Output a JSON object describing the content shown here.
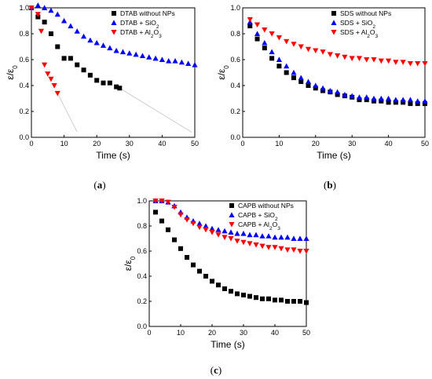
{
  "chart_data": [
    {
      "type": "scatter",
      "panel_caption": "(a)",
      "xlabel": "Time (s)",
      "ylabel": "ε/ε0",
      "xlim": [
        0,
        50
      ],
      "ylim": [
        0,
        1.0
      ],
      "xticks": [
        "0",
        "10",
        "20",
        "30",
        "40",
        "50"
      ],
      "yticks": [
        "0.0",
        "0.2",
        "0.4",
        "0.6",
        "0.8",
        "1.0"
      ],
      "legend_position": "top-right",
      "colors": {
        "black": "#000000",
        "blue": "#0000ff",
        "red": "#ff0000",
        "fit": "#aaaaaa"
      },
      "series": [
        {
          "name": "DTAB without NPs",
          "marker": "square",
          "color": "#000000",
          "x": [
            2,
            4,
            6,
            8,
            10,
            12,
            14,
            16,
            18,
            20,
            22,
            24,
            26,
            27
          ],
          "y": [
            0.93,
            0.89,
            0.8,
            0.7,
            0.61,
            0.61,
            0.56,
            0.52,
            0.48,
            0.44,
            0.42,
            0.42,
            0.39,
            0.38
          ]
        },
        {
          "name": "DTAB + SiO2",
          "marker": "triangle-up",
          "color": "#0000ff",
          "x": [
            0,
            2,
            4,
            6,
            8,
            10,
            12,
            14,
            16,
            18,
            20,
            22,
            24,
            26,
            28,
            30,
            32,
            34,
            36,
            38,
            40,
            42,
            44,
            46,
            48,
            50
          ],
          "y": [
            1.0,
            1.02,
            1.0,
            0.98,
            0.95,
            0.9,
            0.86,
            0.82,
            0.78,
            0.75,
            0.73,
            0.71,
            0.69,
            0.67,
            0.66,
            0.65,
            0.64,
            0.63,
            0.62,
            0.61,
            0.6,
            0.59,
            0.59,
            0.58,
            0.57,
            0.56
          ]
        },
        {
          "name": "DTAB + Al2O3",
          "marker": "triangle-down",
          "color": "#ff0000",
          "x": [
            0,
            2,
            3,
            4,
            5,
            6,
            7,
            8
          ],
          "y": [
            1.0,
            0.95,
            0.82,
            0.56,
            0.49,
            0.45,
            0.4,
            0.34
          ]
        }
      ],
      "fit_lines": [
        {
          "x": [
            8,
            14
          ],
          "y": [
            0.34,
            0.04
          ]
        },
        {
          "x": [
            27,
            49
          ],
          "y": [
            0.38,
            0.04
          ]
        }
      ]
    },
    {
      "type": "scatter",
      "panel_caption": "(b)",
      "xlabel": "Time (s)",
      "ylabel": "ε/ε0",
      "xlim": [
        0,
        50
      ],
      "ylim": [
        0,
        1.0
      ],
      "xticks": [
        "0",
        "10",
        "20",
        "30",
        "40",
        "50"
      ],
      "yticks": [
        "0.0",
        "0.2",
        "0.4",
        "0.6",
        "0.8",
        "1.0"
      ],
      "legend_position": "top-right",
      "series": [
        {
          "name": "SDS without NPs",
          "marker": "square",
          "color": "#000000",
          "x": [
            2,
            4,
            6,
            8,
            10,
            12,
            14,
            16,
            18,
            20,
            22,
            24,
            26,
            28,
            30,
            32,
            34,
            36,
            38,
            40,
            42,
            44,
            46,
            48,
            50
          ],
          "y": [
            0.86,
            0.76,
            0.69,
            0.61,
            0.55,
            0.5,
            0.46,
            0.43,
            0.4,
            0.38,
            0.36,
            0.35,
            0.33,
            0.32,
            0.31,
            0.29,
            0.29,
            0.28,
            0.28,
            0.27,
            0.27,
            0.27,
            0.26,
            0.26,
            0.26
          ]
        },
        {
          "name": "SDS + SiO2",
          "marker": "triangle-up",
          "color": "#0000ff",
          "x": [
            2,
            4,
            6,
            8,
            10,
            12,
            14,
            16,
            18,
            20,
            22,
            24,
            26,
            28,
            30,
            32,
            34,
            36,
            38,
            40,
            42,
            44,
            46,
            48,
            50
          ],
          "y": [
            0.89,
            0.8,
            0.73,
            0.66,
            0.6,
            0.55,
            0.5,
            0.46,
            0.43,
            0.4,
            0.38,
            0.36,
            0.35,
            0.33,
            0.32,
            0.31,
            0.31,
            0.3,
            0.3,
            0.3,
            0.29,
            0.29,
            0.29,
            0.28,
            0.28
          ]
        },
        {
          "name": "SDS + Al2O3",
          "marker": "triangle-down",
          "color": "#ff0000",
          "x": [
            2,
            4,
            6,
            8,
            10,
            12,
            14,
            16,
            18,
            20,
            22,
            24,
            26,
            28,
            30,
            32,
            34,
            36,
            38,
            40,
            42,
            44,
            46,
            48,
            50
          ],
          "y": [
            0.91,
            0.87,
            0.83,
            0.8,
            0.77,
            0.74,
            0.72,
            0.7,
            0.68,
            0.67,
            0.66,
            0.64,
            0.63,
            0.62,
            0.61,
            0.61,
            0.6,
            0.6,
            0.59,
            0.59,
            0.58,
            0.58,
            0.57,
            0.57,
            0.57
          ]
        }
      ]
    },
    {
      "type": "scatter",
      "panel_caption": "(c)",
      "xlabel": "Time (s)",
      "ylabel": "ε/ε0",
      "xlim": [
        0,
        50
      ],
      "ylim": [
        0,
        1.0
      ],
      "xticks": [
        "0",
        "10",
        "20",
        "30",
        "40",
        "50"
      ],
      "yticks": [
        "0.0",
        "0.2",
        "0.4",
        "0.6",
        "0.8",
        "1.0"
      ],
      "legend_position": "top-right",
      "series": [
        {
          "name": "CAPB without NPs",
          "marker": "square",
          "color": "#000000",
          "x": [
            2,
            4,
            6,
            8,
            10,
            12,
            14,
            16,
            18,
            20,
            22,
            24,
            26,
            28,
            30,
            32,
            34,
            36,
            38,
            40,
            42,
            44,
            46,
            48,
            50
          ],
          "y": [
            0.91,
            0.84,
            0.77,
            0.69,
            0.62,
            0.55,
            0.49,
            0.44,
            0.4,
            0.36,
            0.33,
            0.3,
            0.28,
            0.26,
            0.25,
            0.24,
            0.23,
            0.22,
            0.22,
            0.21,
            0.21,
            0.2,
            0.2,
            0.2,
            0.19
          ]
        },
        {
          "name": "CAPB + SiO2",
          "marker": "triangle-up",
          "color": "#0000ff",
          "x": [
            2,
            4,
            6,
            8,
            10,
            12,
            14,
            16,
            18,
            20,
            22,
            24,
            26,
            28,
            30,
            32,
            34,
            36,
            38,
            40,
            42,
            44,
            46,
            48,
            50
          ],
          "y": [
            1.0,
            1.0,
            0.99,
            0.96,
            0.91,
            0.87,
            0.84,
            0.82,
            0.8,
            0.78,
            0.77,
            0.76,
            0.75,
            0.74,
            0.74,
            0.73,
            0.73,
            0.72,
            0.72,
            0.71,
            0.71,
            0.71,
            0.7,
            0.7,
            0.7
          ]
        },
        {
          "name": "CAPB + Al2O3",
          "marker": "triangle-down",
          "color": "#ff0000",
          "x": [
            2,
            4,
            6,
            8,
            10,
            12,
            14,
            16,
            18,
            20,
            22,
            24,
            26,
            28,
            30,
            32,
            34,
            36,
            38,
            40,
            42,
            44,
            46,
            48,
            50
          ],
          "y": [
            1.0,
            1.0,
            0.99,
            0.95,
            0.89,
            0.85,
            0.82,
            0.79,
            0.77,
            0.75,
            0.73,
            0.71,
            0.7,
            0.68,
            0.67,
            0.66,
            0.65,
            0.64,
            0.63,
            0.63,
            0.62,
            0.61,
            0.61,
            0.6,
            0.6
          ]
        }
      ]
    }
  ]
}
